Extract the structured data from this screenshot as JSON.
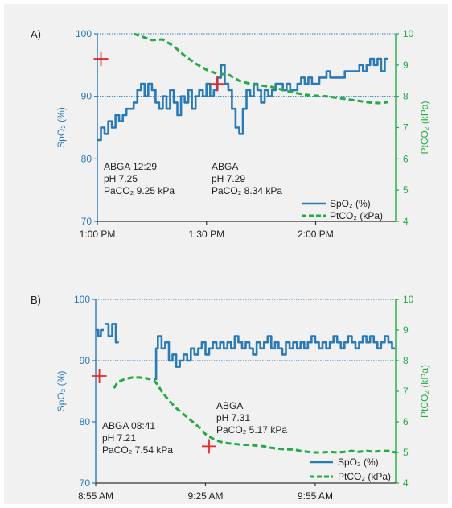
{
  "chart_data": [
    {
      "type": "line",
      "panel_label": "A)",
      "x_tick_labels": [
        "1:00 PM",
        "1:30 PM",
        "2:00 PM"
      ],
      "x_ticks_minutes": [
        0,
        30,
        60
      ],
      "xlim_minutes": [
        0,
        82
      ],
      "ylabel_left": "SpO₂ (%)",
      "ylabel_right": "PtCO₂ (kPa)",
      "ylim_left": [
        70,
        100
      ],
      "ylim_right": [
        4,
        10
      ],
      "yticks_left": [
        "70",
        "80",
        "90",
        "100"
      ],
      "yticks_right": [
        "4",
        "5",
        "6",
        "7",
        "8",
        "9",
        "10"
      ],
      "reference_lines_left": [
        90,
        100
      ],
      "legend": {
        "position": "bottom-right",
        "entries": [
          "SpO₂ (%)",
          "PtCO₂ (kPa)"
        ]
      },
      "series": [
        {
          "name": "SpO₂ (%)",
          "axis": "left",
          "color": "#2a79b8",
          "style": "solid",
          "x": [
            0,
            1,
            2,
            3,
            4,
            5,
            6,
            7,
            8,
            9,
            10,
            11,
            12,
            13,
            14,
            15,
            16,
            17,
            18,
            19,
            20,
            21,
            22,
            23,
            24,
            25,
            26,
            27,
            28,
            29,
            30,
            31,
            32,
            33,
            34,
            35,
            36,
            37,
            38,
            39,
            40,
            41,
            42,
            43,
            44,
            45,
            46,
            47,
            48,
            49,
            50,
            51,
            52,
            53,
            54,
            55,
            56,
            57,
            58,
            59,
            60,
            61,
            62,
            63,
            64,
            65,
            66,
            67,
            68,
            69,
            70,
            71,
            72,
            73,
            74,
            75,
            76,
            77,
            78,
            79
          ],
          "y": [
            83,
            85,
            84,
            86,
            85,
            87,
            86,
            87,
            88,
            88,
            89,
            91,
            92,
            90,
            92,
            91,
            89,
            88,
            90,
            88,
            91,
            89,
            87,
            90,
            89,
            91,
            88,
            90,
            91,
            90,
            92,
            90,
            91,
            93,
            95,
            92,
            91,
            88,
            85,
            84,
            88,
            91,
            90,
            92,
            91,
            89,
            91,
            90,
            91,
            92,
            92,
            91,
            92,
            91,
            91,
            92,
            93,
            92,
            93,
            92,
            92,
            93,
            93,
            94,
            93,
            93,
            93,
            93,
            94,
            94,
            94,
            94,
            95,
            94,
            95,
            96,
            95,
            96,
            94,
            96
          ]
        },
        {
          "name": "PtCO₂ (kPa)",
          "axis": "right",
          "color": "#22aa44",
          "style": "dashed",
          "x": [
            10,
            12,
            15,
            18,
            21,
            24,
            27,
            30,
            33,
            36,
            39,
            42,
            45,
            48,
            51,
            54,
            57,
            60,
            63,
            66,
            69,
            72,
            75,
            78,
            80
          ],
          "y": [
            10,
            9.92,
            9.8,
            9.82,
            9.6,
            9.3,
            9.05,
            8.85,
            8.72,
            8.7,
            8.5,
            8.4,
            8.35,
            8.3,
            8.2,
            8.12,
            8.05,
            8.02,
            8.0,
            7.95,
            7.9,
            7.85,
            7.8,
            7.78,
            7.82
          ]
        }
      ],
      "markers": [
        {
          "x": 1,
          "y": 96,
          "axis": "left"
        },
        {
          "x": 33,
          "y": 92,
          "axis": "left"
        }
      ],
      "annotations": [
        {
          "lines": [
            "ABGA 12:29",
            "pH 7.25",
            "PaCO₂ 9.25 kPa"
          ]
        },
        {
          "lines": [
            "ABGA",
            "pH 7.29",
            "PaCO₂ 8.34 kPa"
          ]
        }
      ]
    },
    {
      "type": "line",
      "panel_label": "B)",
      "x_tick_labels": [
        "8:55 AM",
        "9:25 AM",
        "9:55 AM"
      ],
      "x_ticks_minutes": [
        0,
        30,
        60
      ],
      "xlim_minutes": [
        0,
        82
      ],
      "ylabel_left": "SpO₂ (%)",
      "ylabel_right": "PtCO₂ (kPa)",
      "ylim_left": [
        70,
        100
      ],
      "ylim_right": [
        4,
        10
      ],
      "yticks_left": [
        "70",
        "80",
        "90",
        "100"
      ],
      "yticks_right": [
        "4",
        "5",
        "6",
        "7",
        "8",
        "9",
        "10"
      ],
      "reference_lines_left": [
        90,
        100
      ],
      "legend": {
        "position": "bottom-right",
        "entries": [
          "SpO₂ (%)",
          "PtCO₂ (kPa)"
        ]
      },
      "series": [
        {
          "name": "SpO₂ (%)",
          "axis": "left",
          "color": "#2a79b8",
          "style": "solid",
          "segments": [
            {
              "x": [
                0,
                0.7,
                1.4
              ],
              "y": [
                95,
                94,
                95
              ]
            },
            {
              "x": [
                2.5,
                3.5,
                4.5,
                5.5
              ],
              "y": [
                96,
                94,
                96,
                93
              ]
            },
            {
              "x": [
                16,
                16.5,
                17,
                18,
                19,
                20,
                21,
                22,
                23,
                24,
                25,
                26,
                27,
                28,
                29,
                30,
                31,
                32,
                33,
                34,
                35,
                36,
                37,
                38,
                39,
                40,
                41,
                42,
                43,
                44,
                45,
                46,
                47,
                48,
                49,
                50,
                51,
                52,
                53,
                54,
                55,
                56,
                57,
                58,
                59,
                60,
                61,
                62,
                63,
                64,
                65,
                66,
                67,
                68,
                69,
                70,
                71,
                72,
                73,
                74,
                75,
                76,
                77,
                78,
                79,
                80,
                81
              ],
              "y": [
                87,
                92,
                94,
                92,
                93,
                90,
                91,
                89,
                90,
                91,
                90,
                92,
                91,
                92,
                93,
                91,
                92,
                93,
                92,
                93,
                92,
                93,
                92,
                94,
                93,
                92,
                93,
                92,
                91,
                93,
                92,
                93,
                94,
                92,
                93,
                92,
                91,
                93,
                92,
                93,
                92,
                93,
                92,
                93,
                94,
                93,
                92,
                93,
                92,
                93,
                94,
                93,
                92,
                93,
                94,
                93,
                92,
                93,
                94,
                93,
                94,
                93,
                92,
                93,
                94,
                93,
                92
              ]
            }
          ]
        },
        {
          "name": "PtCO₂ (kPa)",
          "axis": "right",
          "color": "#22aa44",
          "style": "dashed",
          "x": [
            5,
            6,
            8,
            10,
            12,
            14,
            16,
            17,
            18,
            20,
            22,
            24,
            26,
            28,
            30,
            32,
            34,
            36,
            38,
            40,
            42,
            44,
            46,
            48,
            50,
            52,
            54,
            56,
            58,
            60,
            62,
            64,
            66,
            68,
            70,
            72,
            74,
            76,
            78,
            80,
            82
          ],
          "y": [
            7.1,
            7.3,
            7.4,
            7.45,
            7.45,
            7.42,
            7.35,
            7.2,
            7.0,
            6.7,
            6.45,
            6.25,
            6.05,
            5.85,
            5.6,
            5.45,
            5.35,
            5.3,
            5.28,
            5.25,
            5.25,
            5.22,
            5.2,
            5.15,
            5.12,
            5.1,
            5.1,
            5.05,
            5.02,
            5.0,
            5.0,
            5.02,
            5.0,
            5.02,
            5.05,
            5.02,
            5.05,
            5.02,
            5.05,
            5.05,
            5.0
          ]
        }
      ],
      "markers": [
        {
          "x": 1,
          "y": 87.5,
          "axis": "left"
        },
        {
          "x": 31,
          "y": 76,
          "axis": "left"
        }
      ],
      "annotations": [
        {
          "lines": [
            "ABGA 08:41",
            "pH 7.21",
            "PaCO₂ 7.54 kPa"
          ]
        },
        {
          "lines": [
            "ABGA",
            "pH 7.31",
            "PaCO₂ 5.17 kPa"
          ]
        }
      ]
    }
  ]
}
